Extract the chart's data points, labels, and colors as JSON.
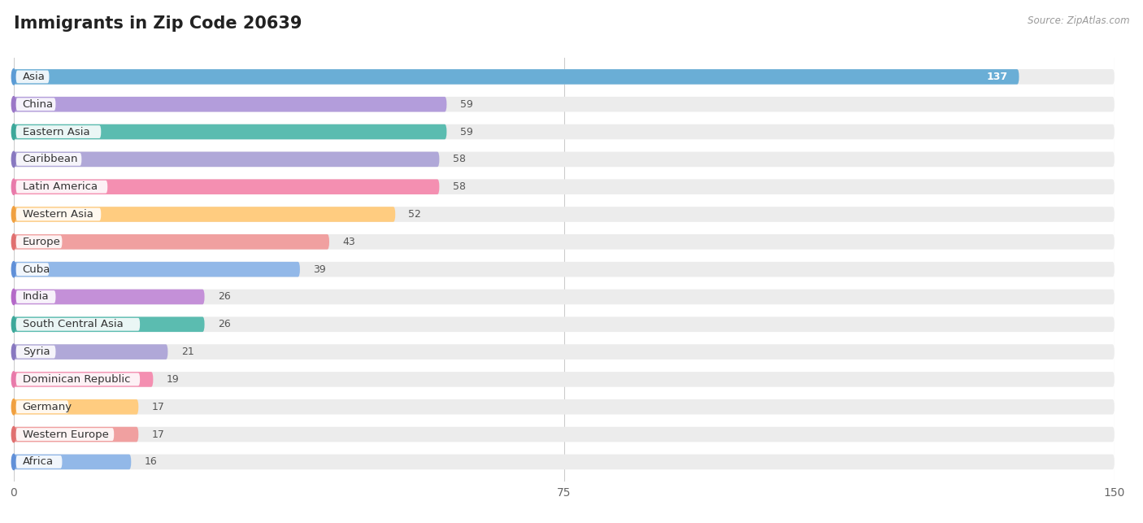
{
  "title": "Immigrants in Zip Code 20639",
  "source": "Source: ZipAtlas.com",
  "categories": [
    "Asia",
    "China",
    "Eastern Asia",
    "Caribbean",
    "Latin America",
    "Western Asia",
    "Europe",
    "Cuba",
    "India",
    "South Central Asia",
    "Syria",
    "Dominican Republic",
    "Germany",
    "Western Europe",
    "Africa"
  ],
  "values": [
    137,
    59,
    59,
    58,
    58,
    52,
    43,
    39,
    26,
    26,
    21,
    19,
    17,
    17,
    16
  ],
  "bar_colors": [
    "#6aaed6",
    "#b39ddb",
    "#5bbcb0",
    "#b0a8d8",
    "#f48fb1",
    "#ffcc80",
    "#f0a0a0",
    "#92b8e8",
    "#c490d8",
    "#5bbcb0",
    "#b0a8d8",
    "#f48fb1",
    "#ffcc80",
    "#f0a0a0",
    "#92b8e8"
  ],
  "dot_colors": [
    "#5b9bd5",
    "#9b77c7",
    "#3da89a",
    "#8878c0",
    "#e87aaa",
    "#f0a040",
    "#e07070",
    "#6090d8",
    "#b468c8",
    "#3da89a",
    "#8878c0",
    "#e87aaa",
    "#f0a040",
    "#e07070",
    "#6090d8"
  ],
  "xlim": [
    0,
    150
  ],
  "xticks": [
    0,
    75,
    150
  ],
  "background_color": "#ffffff",
  "bar_bg_color": "#ececec",
  "title_fontsize": 15,
  "label_fontsize": 9.5,
  "value_fontsize": 9
}
